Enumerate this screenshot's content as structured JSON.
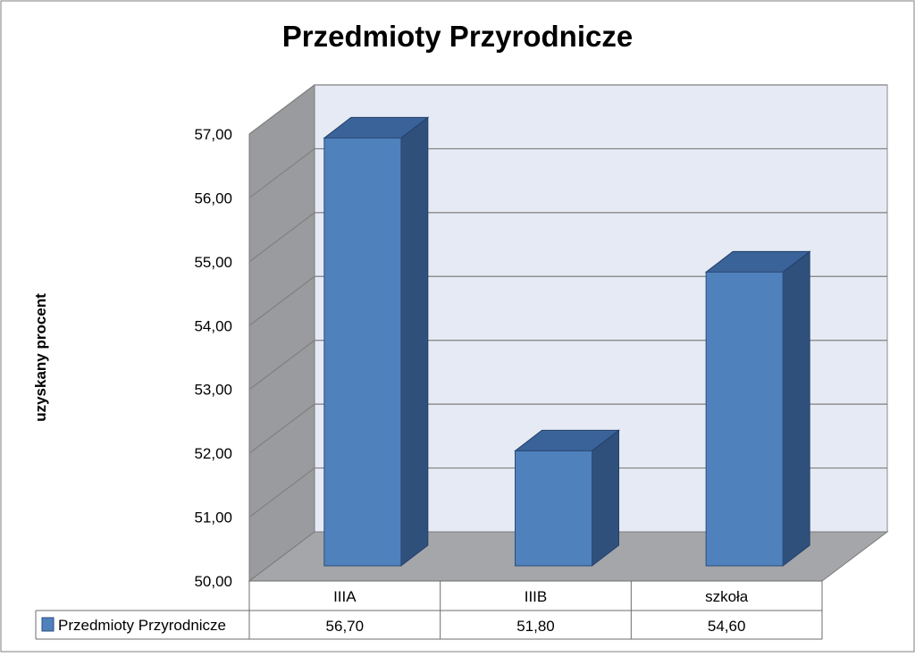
{
  "chart_data": {
    "type": "bar",
    "title": "Przedmioty Przyrodnicze",
    "xlabel": "",
    "ylabel": "uzyskany procent",
    "categories": [
      "IIIA",
      "IIIB",
      "szkoła"
    ],
    "series": [
      {
        "name": "Przedmioty Przyrodnicze",
        "values": [
          56.7,
          51.8,
          54.6
        ],
        "color": "#4F81BD"
      }
    ],
    "ylim": [
      50,
      57
    ],
    "y_ticks": [
      "50,00",
      "51,00",
      "52,00",
      "53,00",
      "54,00",
      "55,00",
      "56,00",
      "57,00"
    ],
    "data_table": {
      "row_label": "Przedmioty Przyrodnicze",
      "values": [
        "56,70",
        "51,80",
        "54,60"
      ]
    },
    "grid": true,
    "three_d": true,
    "colors": {
      "bar_front": "#4F81BD",
      "bar_side": "#30507C",
      "bar_top": "#3A6399",
      "back_wall": "#E6EAF4",
      "side_wall": "#9A9B9E",
      "floor": "#A5A6A9",
      "gridline": "#808080"
    }
  }
}
